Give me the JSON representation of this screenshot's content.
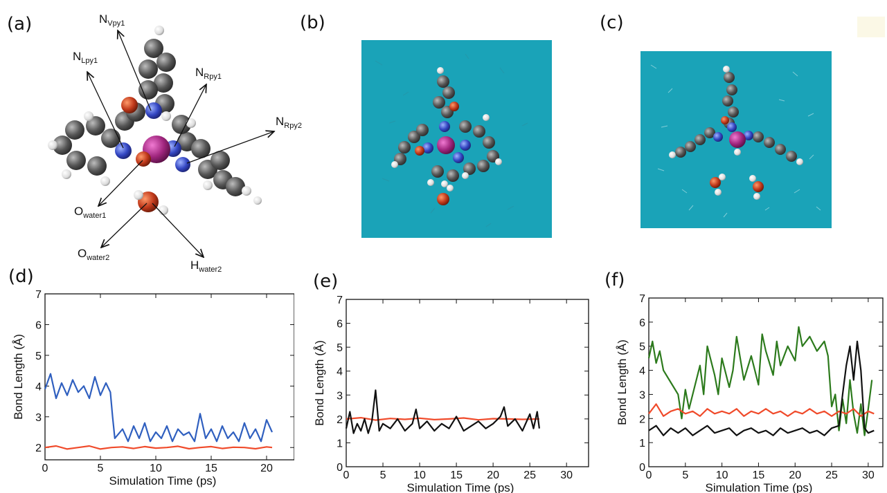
{
  "panels": {
    "a": "(a)",
    "b": "(b)",
    "c": "(c)",
    "d": "(d)",
    "e": "(e)",
    "f": "(f)"
  },
  "molecule_labels": [
    {
      "base": "N",
      "sub": "Vpy1"
    },
    {
      "base": "N",
      "sub": "Lpy1"
    },
    {
      "base": "N",
      "sub": "Rpy1"
    },
    {
      "base": "N",
      "sub": "Rpy2"
    },
    {
      "base": "O",
      "sub": "water1"
    },
    {
      "base": "O",
      "sub": "water2"
    },
    {
      "base": "H",
      "sub": "water2"
    }
  ],
  "colors": {
    "water_box": "#1aa3b8",
    "carbon": "#5a5a5a",
    "nitrogen": "#3355cc",
    "metal": "#a0267e",
    "oxygen": "#c0391b",
    "hydrogen": "#f2f2f2",
    "red_series": "#f04a2a",
    "blue_series": "#2f5fbf",
    "black_series": "#111111",
    "green_series": "#2c7a1c"
  },
  "chart_data": [
    {
      "id": "d",
      "type": "line",
      "xlabel": "Simulation Time (ps)",
      "ylabel": "Bond Length (Å)",
      "xlim": [
        0,
        22.5
      ],
      "ylim": [
        1.6,
        7
      ],
      "xticks": [
        0,
        5,
        10,
        15,
        20
      ],
      "yticks": [
        2,
        3,
        4,
        5,
        6,
        7
      ],
      "series": [
        {
          "color": "#2f5fbf",
          "x": [
            0,
            0.5,
            1,
            1.5,
            2,
            2.5,
            3,
            3.5,
            4,
            4.5,
            5,
            5.5,
            5.9,
            6.1,
            6.3,
            7,
            7.5,
            8,
            8.5,
            9,
            9.5,
            10,
            10.5,
            11,
            11.5,
            12,
            12.5,
            13,
            13.5,
            14,
            14.5,
            15,
            15.5,
            16,
            16.5,
            17,
            17.5,
            18,
            18.5,
            19,
            19.5,
            20,
            20.5
          ],
          "y": [
            3.9,
            4.4,
            3.6,
            4.1,
            3.7,
            4.2,
            3.8,
            4.0,
            3.6,
            4.3,
            3.7,
            4.1,
            3.8,
            3.0,
            2.3,
            2.6,
            2.2,
            2.7,
            2.3,
            2.8,
            2.2,
            2.5,
            2.3,
            2.7,
            2.2,
            2.6,
            2.4,
            2.5,
            2.2,
            3.1,
            2.3,
            2.6,
            2.2,
            2.7,
            2.3,
            2.5,
            2.2,
            2.8,
            2.3,
            2.6,
            2.2,
            2.9,
            2.5
          ]
        },
        {
          "color": "#f04a2a",
          "x": [
            0,
            1,
            2,
            3,
            4,
            5,
            6,
            7,
            8,
            9,
            10,
            11,
            12,
            13,
            14,
            15,
            16,
            17,
            18,
            19,
            20,
            20.5
          ],
          "y": [
            2.0,
            2.05,
            1.95,
            2.0,
            2.05,
            1.95,
            2.0,
            2.02,
            1.97,
            2.03,
            1.98,
            2.0,
            2.04,
            1.96,
            2.0,
            2.03,
            1.97,
            2.01,
            2.0,
            1.96,
            2.02,
            2.0
          ]
        }
      ]
    },
    {
      "id": "e",
      "type": "line",
      "xlabel": "Simulation Time (ps)",
      "ylabel": "Bond Length (Å)",
      "xlim": [
        0,
        33
      ],
      "ylim": [
        0,
        7
      ],
      "xticks": [
        0,
        5,
        10,
        15,
        20,
        25,
        30
      ],
      "yticks": [
        0,
        1,
        2,
        3,
        4,
        5,
        6,
        7
      ],
      "series": [
        {
          "color": "#f04a2a",
          "x": [
            0,
            2,
            4,
            6,
            8,
            10,
            12,
            14,
            16,
            18,
            20,
            22,
            24,
            26.3
          ],
          "y": [
            2.0,
            2.05,
            1.95,
            2.02,
            1.98,
            2.03,
            1.97,
            2.0,
            2.04,
            1.96,
            2.01,
            2.0,
            1.98,
            2.0
          ]
        },
        {
          "color": "#111111",
          "x": [
            0,
            0.5,
            1,
            1.5,
            2,
            2.5,
            3,
            3.5,
            4,
            4.5,
            5,
            6,
            7,
            8,
            9,
            9.5,
            10,
            11,
            12,
            13,
            14,
            15,
            16,
            17,
            18,
            19,
            20,
            21,
            21.5,
            22,
            23,
            24,
            25,
            25.5,
            26,
            26.3
          ],
          "y": [
            1.6,
            2.3,
            1.4,
            1.8,
            1.5,
            2.0,
            1.4,
            1.9,
            3.2,
            1.5,
            1.8,
            1.6,
            2.0,
            1.5,
            1.8,
            2.4,
            1.6,
            1.9,
            1.5,
            1.8,
            1.6,
            2.1,
            1.5,
            1.7,
            1.9,
            1.6,
            1.8,
            2.1,
            2.5,
            1.7,
            2.0,
            1.5,
            2.2,
            1.6,
            2.3,
            1.6
          ]
        }
      ]
    },
    {
      "id": "f",
      "type": "line",
      "xlabel": "Simulation Time (ps)",
      "ylabel": "Bond Length (Å)",
      "xlim": [
        0,
        32
      ],
      "ylim": [
        0,
        7
      ],
      "xticks": [
        0,
        5,
        10,
        15,
        20,
        25,
        30
      ],
      "yticks": [
        0,
        1,
        2,
        3,
        4,
        5,
        6,
        7
      ],
      "series": [
        {
          "color": "#2c7a1c",
          "x": [
            0,
            0.5,
            1,
            1.5,
            2,
            3,
            4,
            4.5,
            5,
            5.5,
            6,
            7,
            7.5,
            8,
            9,
            9.5,
            10,
            11,
            11.5,
            12,
            13,
            14,
            15,
            15.5,
            16,
            17,
            17.5,
            18,
            19,
            20,
            20.5,
            21,
            22,
            23,
            24,
            24.5,
            25,
            25.5,
            26,
            26.5,
            27,
            27.5,
            28,
            28.5,
            29,
            29.5,
            30,
            30.5
          ],
          "y": [
            4.5,
            5.2,
            4.3,
            4.8,
            4.0,
            3.5,
            3.0,
            2.0,
            3.2,
            2.4,
            3.0,
            4.2,
            3.0,
            5.0,
            3.8,
            3.0,
            4.5,
            3.3,
            4.0,
            5.4,
            3.6,
            4.6,
            3.4,
            5.5,
            4.8,
            3.8,
            5.2,
            4.2,
            5.0,
            4.4,
            5.8,
            5.0,
            5.4,
            4.8,
            5.2,
            4.6,
            2.5,
            3.0,
            1.5,
            2.8,
            1.8,
            3.6,
            2.2,
            1.4,
            2.6,
            1.3,
            2.4,
            3.6
          ]
        },
        {
          "color": "#f04a2a",
          "x": [
            0,
            1,
            2,
            3,
            4,
            5,
            6,
            7,
            8,
            9,
            10,
            11,
            12,
            13,
            14,
            15,
            16,
            17,
            18,
            19,
            20,
            21,
            22,
            23,
            24,
            25,
            26,
            27,
            28,
            29,
            30,
            30.8
          ],
          "y": [
            2.2,
            2.6,
            2.1,
            2.3,
            2.4,
            2.2,
            2.3,
            2.1,
            2.4,
            2.2,
            2.3,
            2.2,
            2.4,
            2.1,
            2.3,
            2.2,
            2.4,
            2.2,
            2.3,
            2.1,
            2.3,
            2.2,
            2.4,
            2.2,
            2.3,
            2.1,
            2.3,
            2.2,
            2.4,
            2.1,
            2.3,
            2.2
          ]
        },
        {
          "color": "#111111",
          "x": [
            0,
            1,
            2,
            3,
            4,
            5,
            6,
            7,
            8,
            9,
            10,
            11,
            12,
            13,
            14,
            15,
            16,
            17,
            18,
            19,
            20,
            21,
            22,
            23,
            24,
            25,
            26,
            26.5,
            27,
            27.5,
            28,
            28.5,
            29,
            29.5,
            30,
            30.8
          ],
          "y": [
            1.5,
            1.7,
            1.3,
            1.6,
            1.4,
            1.6,
            1.3,
            1.5,
            1.7,
            1.4,
            1.5,
            1.6,
            1.3,
            1.5,
            1.6,
            1.4,
            1.5,
            1.3,
            1.6,
            1.4,
            1.5,
            1.6,
            1.4,
            1.5,
            1.3,
            1.6,
            1.7,
            3.0,
            4.2,
            5.0,
            3.6,
            5.2,
            4.0,
            1.6,
            1.4,
            1.5
          ]
        }
      ]
    }
  ]
}
